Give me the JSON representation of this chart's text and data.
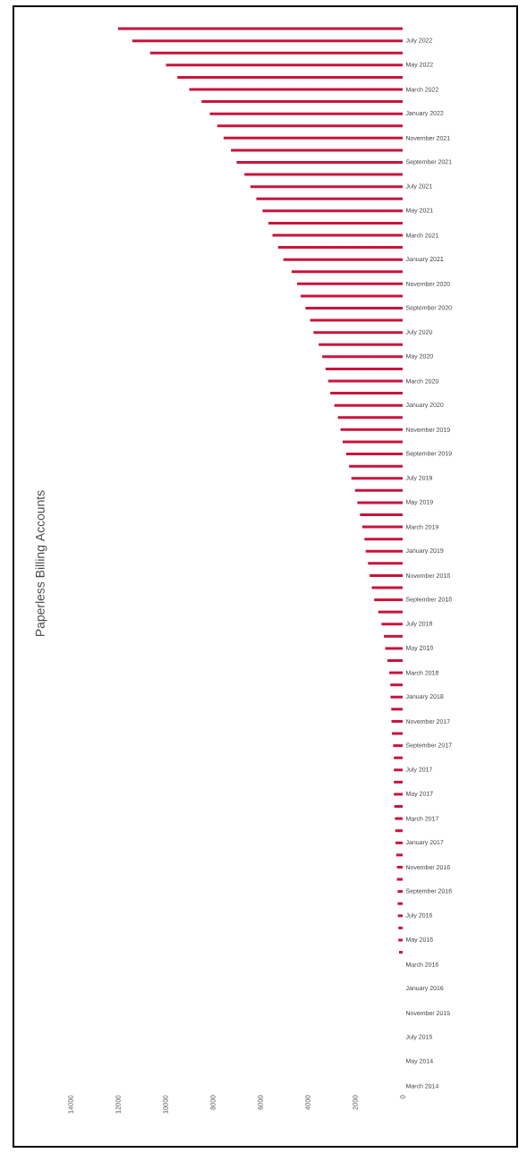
{
  "chart_data": {
    "type": "bar",
    "orientation": "horizontal",
    "title": "Paperless Billing Accounts",
    "categories": [
      null,
      "July 2022",
      null,
      "May 2022",
      null,
      "March 2022",
      null,
      "January 2022",
      null,
      "November 2021",
      null,
      "September 2021",
      null,
      "July 2021",
      null,
      "May 2021",
      null,
      "March 2021",
      null,
      "January 2021",
      null,
      "November 2020",
      null,
      "September 2020",
      null,
      "July 2020",
      null,
      "May 2020",
      null,
      "March 2020",
      null,
      "January 2020",
      null,
      "November 2019",
      null,
      "September 2019",
      null,
      "July 2019",
      null,
      "May 2019",
      null,
      "March 2019",
      null,
      "January 2019",
      null,
      "November 2018",
      null,
      "September 2018",
      null,
      "July 2018",
      null,
      "May 2018",
      null,
      "March 2018",
      null,
      "January 2018",
      null,
      "November 2017",
      null,
      "September 2017",
      null,
      "July 2017",
      null,
      "May 2017",
      null,
      "March 2017",
      null,
      "January 2017",
      null,
      "November 2016",
      null,
      "September 2016",
      null,
      "July 2016",
      null,
      "May 2016",
      null,
      "March 2016",
      null,
      "January 2016",
      null,
      "November 2015",
      null,
      "July 2015",
      null,
      "May 2014",
      null,
      "March 2014"
    ],
    "values": [
      12000,
      11400,
      10650,
      9980,
      9500,
      9000,
      8480,
      8130,
      7820,
      7550,
      7240,
      7000,
      6670,
      6420,
      6170,
      5910,
      5660,
      5490,
      5250,
      5030,
      4680,
      4450,
      4300,
      4100,
      3900,
      3760,
      3540,
      3390,
      3250,
      3140,
      3050,
      2880,
      2730,
      2620,
      2530,
      2380,
      2260,
      2160,
      2010,
      1910,
      1800,
      1700,
      1610,
      1560,
      1460,
      1390,
      1300,
      1200,
      1030,
      890,
      790,
      735,
      640,
      565,
      520,
      510,
      480,
      470,
      450,
      400,
      370,
      370,
      370,
      370,
      350,
      325,
      310,
      300,
      270,
      240,
      240,
      210,
      210,
      200,
      180,
      180,
      150,
      null,
      null,
      null,
      null,
      null,
      null,
      null,
      null,
      null,
      null,
      null
    ],
    "color": "#c8143c",
    "xlim": [
      14000,
      0
    ],
    "xticks": [
      0,
      2000,
      4000,
      6000,
      8000,
      10000,
      12000,
      14000
    ]
  }
}
